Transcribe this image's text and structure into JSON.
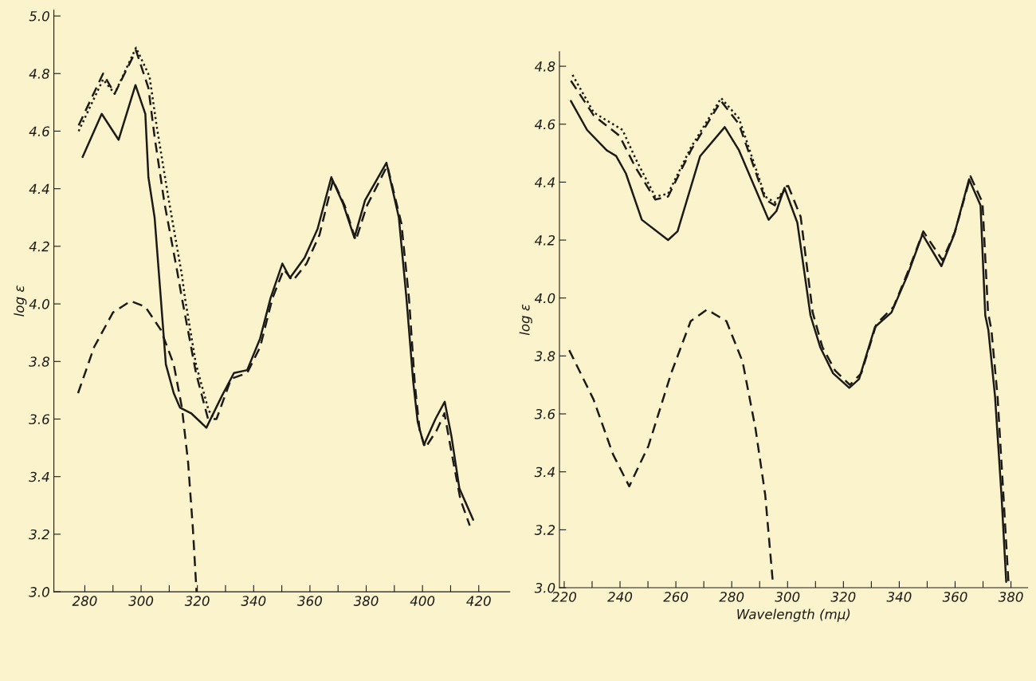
{
  "chart_data": [
    {
      "type": "line",
      "ylabel": "log ε",
      "xlim": [
        269,
        431
      ],
      "ylim": [
        3.0,
        5.02
      ],
      "grid": false,
      "xticks": [
        280,
        {
          "value": 290,
          "label": null
        },
        300,
        {
          "value": 310,
          "label": null
        },
        320,
        {
          "value": 330,
          "label": null
        },
        340,
        {
          "value": 350,
          "label": null
        },
        360,
        {
          "value": 370,
          "label": null
        },
        380,
        {
          "value": 390,
          "label": null
        },
        400,
        {
          "value": 410,
          "label": null
        },
        420
      ],
      "yticks": [
        {
          "value": 3.0,
          "label": "3.0"
        },
        {
          "value": 3.2,
          "label": "3.2"
        },
        {
          "value": 3.4,
          "label": "3.4"
        },
        {
          "value": 3.6,
          "label": "3.6"
        },
        {
          "value": 3.8,
          "label": "3.8"
        },
        {
          "value": 4.0,
          "label": "4.0"
        },
        {
          "value": 4.2,
          "label": "4.2"
        },
        {
          "value": 4.4,
          "label": "4.4"
        },
        {
          "value": 4.6,
          "label": "4.6"
        },
        {
          "value": 4.8,
          "label": "4.8"
        },
        {
          "value": 5.0,
          "label": "5.0"
        }
      ],
      "series": [
        {
          "color": "#1c1a17",
          "line_style": "solid",
          "x": [
            279.2,
            286,
            292,
            298,
            301.5,
            302.6,
            304.8,
            307,
            308.8,
            311.6,
            313.8,
            317.8,
            323.2,
            328.7,
            333,
            337.7,
            342.3,
            346,
            350.2,
            352.9,
            358.1,
            362.7,
            367.6,
            371.7,
            375.8,
            379.6,
            387.2,
            391.6,
            394.3,
            396.7,
            398.3,
            400.5,
            404.6,
            407.9,
            410.3,
            413.1,
            418
          ],
          "values": [
            4.51,
            4.66,
            4.57,
            4.76,
            4.66,
            4.44,
            4.3,
            4.02,
            3.79,
            3.69,
            3.64,
            3.62,
            3.57,
            3.68,
            3.76,
            3.77,
            3.88,
            4.02,
            4.14,
            4.09,
            4.16,
            4.26,
            4.44,
            4.35,
            4.23,
            4.36,
            4.49,
            4.3,
            4.02,
            3.73,
            3.59,
            3.51,
            3.6,
            3.66,
            3.54,
            3.36,
            3.25
          ]
        },
        {
          "color": "#1c1a17",
          "line_style": "dashed",
          "x": [
            277.8,
            286.5,
            290.6,
            298.2,
            302.6,
            304.8,
            308.3,
            312.7,
            314.5,
            319.5,
            323.8,
            326.8,
            332,
            337.7,
            342.3,
            346.7,
            350.7,
            353.9,
            358.8,
            363.4,
            368.2,
            372.4,
            376.3,
            380.2,
            387.5,
            392.5,
            395.2,
            397.3,
            399,
            401,
            405,
            407.8,
            410.4,
            413.5,
            416.8
          ],
          "values": [
            4.62,
            4.8,
            4.73,
            4.88,
            4.75,
            4.58,
            4.35,
            4.12,
            4.02,
            3.76,
            3.6,
            3.6,
            3.74,
            3.76,
            3.85,
            4.02,
            4.12,
            4.08,
            4.14,
            4.24,
            4.43,
            4.34,
            4.22,
            4.34,
            4.48,
            4.28,
            4.02,
            3.72,
            3.56,
            3.5,
            3.56,
            3.62,
            3.48,
            3.32,
            3.23
          ]
        },
        {
          "color": "#1c1a17",
          "line_style": "dotted",
          "x": [
            277.8,
            286.5,
            290.6,
            298.2,
            303,
            305.5,
            309.5,
            314.5,
            315.6,
            319.5,
            324,
            326
          ],
          "values": [
            4.6,
            4.78,
            4.73,
            4.89,
            4.79,
            4.62,
            4.38,
            4.1,
            4.02,
            3.79,
            3.63,
            3.6
          ]
        },
        {
          "color": "#1c1a17",
          "line_style": "dashed",
          "x": [
            277.6,
            283.3,
            290,
            296.3,
            301.5,
            307,
            311.6,
            314.5,
            316.7,
            318.4,
            319.7
          ],
          "values": [
            3.69,
            3.85,
            3.97,
            4.01,
            3.99,
            3.91,
            3.79,
            3.64,
            3.45,
            3.22,
            3.0
          ]
        }
      ]
    },
    {
      "type": "line",
      "ylabel": "log ε",
      "xlabel": "Wavelength (mμ)",
      "xlim": [
        218.3,
        386
      ],
      "ylim": [
        3.0,
        4.85
      ],
      "grid": false,
      "xticks": [
        220,
        {
          "value": 230,
          "label": null
        },
        240,
        {
          "value": 250,
          "label": null
        },
        260,
        {
          "value": 270,
          "label": null
        },
        280,
        {
          "value": 290,
          "label": null
        },
        300,
        {
          "value": 310,
          "label": null
        },
        320,
        {
          "value": 330,
          "label": null
        },
        340,
        {
          "value": 350,
          "label": null
        },
        360,
        {
          "value": 370,
          "label": null
        },
        380
      ],
      "yticks": [
        {
          "value": 3.0,
          "label": "3.0"
        },
        {
          "value": 3.2,
          "label": "3.2"
        },
        {
          "value": 3.4,
          "label": "3.4"
        },
        {
          "value": 3.6,
          "label": "3.6"
        },
        {
          "value": 3.8,
          "label": "3.8"
        },
        {
          "value": 4.0,
          "label": "4.0"
        },
        {
          "value": 4.2,
          "label": "4.2"
        },
        {
          "value": 4.4,
          "label": "4.4"
        },
        {
          "value": 4.6,
          "label": "4.6"
        },
        {
          "value": 4.8,
          "label": "4.8"
        }
      ],
      "series": [
        {
          "color": "#1c1a17",
          "line_style": "solid",
          "x": [
            222.4,
            228.2,
            235.2,
            238.6,
            242.1,
            247.8,
            257.2,
            260.6,
            268.7,
            277.5,
            282.6,
            293.2,
            296,
            298.9,
            303.5,
            308.2,
            311.7,
            316.3,
            322.1,
            325.6,
            331.3,
            337.2,
            343,
            348.3,
            355.1,
            359.7,
            365,
            369.1,
            370.8,
            371.9,
            374.3,
            376.6,
            378.3
          ],
          "values": [
            4.68,
            4.58,
            4.51,
            4.49,
            4.43,
            4.27,
            4.2,
            4.23,
            4.49,
            4.59,
            4.51,
            4.27,
            4.3,
            4.38,
            4.26,
            3.94,
            3.83,
            3.74,
            3.69,
            3.72,
            3.9,
            3.95,
            4.08,
            4.22,
            4.11,
            4.22,
            4.41,
            4.32,
            3.94,
            3.89,
            3.66,
            3.32,
            3.02
          ]
        },
        {
          "color": "#1c1a17",
          "line_style": "dashed",
          "x": [
            222.4,
            230.6,
            239.8,
            245.6,
            252.6,
            257.2,
            265.4,
            276.2,
            282.6,
            292,
            295.4,
            300.1,
            304.7,
            309,
            312.5,
            317,
            322.3,
            326.4,
            331.8,
            338,
            343.5,
            348.6,
            355.5,
            360,
            365.5,
            369.8,
            371.8,
            373,
            375.2,
            377.3,
            379.1
          ],
          "values": [
            4.75,
            4.63,
            4.56,
            4.45,
            4.34,
            4.35,
            4.51,
            4.68,
            4.6,
            4.34,
            4.32,
            4.39,
            4.28,
            3.95,
            3.83,
            3.75,
            3.7,
            3.74,
            3.91,
            3.97,
            4.1,
            4.23,
            4.13,
            4.23,
            4.42,
            4.33,
            3.95,
            3.89,
            3.66,
            3.32,
            3.02
          ]
        },
        {
          "color": "#1c1a17",
          "line_style": "dotted",
          "x": [
            223,
            230.6,
            240.9,
            245.6,
            252.6,
            257.2,
            265.4,
            276.2,
            282.6,
            292,
            295.4,
            300.1
          ],
          "values": [
            4.77,
            4.64,
            4.58,
            4.48,
            4.35,
            4.36,
            4.52,
            4.69,
            4.62,
            4.35,
            4.33,
            4.39
          ]
        },
        {
          "color": "#1c1a17",
          "line_style": "dashed",
          "x": [
            221.8,
            230.5,
            237.5,
            243.3,
            250.2,
            258.3,
            265.3,
            271.1,
            278.1,
            283.9,
            288.5,
            292,
            294.8
          ],
          "values": [
            3.82,
            3.65,
            3.46,
            3.35,
            3.49,
            3.74,
            3.92,
            3.96,
            3.92,
            3.78,
            3.55,
            3.32,
            3.01
          ]
        }
      ]
    }
  ]
}
